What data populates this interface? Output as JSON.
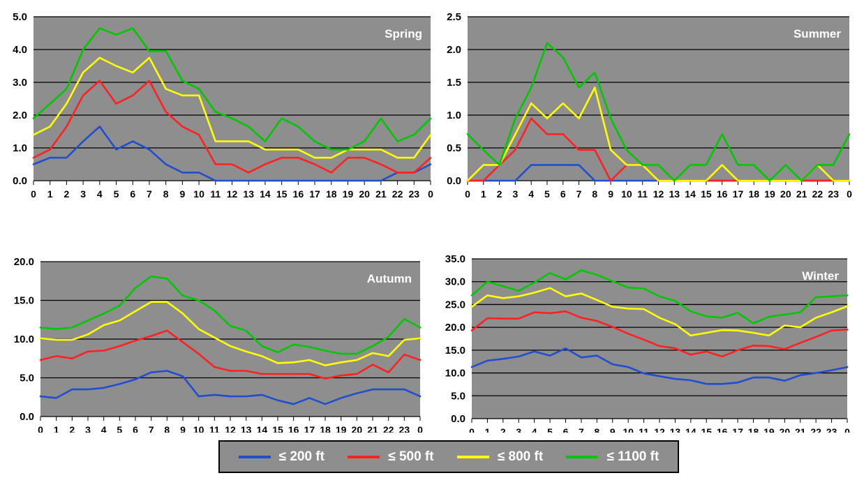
{
  "colors": {
    "plot_bg": "#8e8e8e",
    "series": [
      "#1f4fd0",
      "#ff2020",
      "#ffff00",
      "#00c800"
    ]
  },
  "legend": {
    "items": [
      {
        "label": "≤ 200 ft",
        "color": "#1f4fd0"
      },
      {
        "label": "≤ 500 ft",
        "color": "#ff2020"
      },
      {
        "label": "≤ 800 ft",
        "color": "#ffff00"
      },
      {
        "label": "≤ 1100 ft",
        "color": "#00c800"
      }
    ]
  },
  "chart_data": [
    {
      "type": "line",
      "title": "Spring",
      "x": [
        "0",
        "1",
        "2",
        "3",
        "4",
        "5",
        "6",
        "7",
        "8",
        "9",
        "10",
        "11",
        "12",
        "13",
        "14",
        "15",
        "16",
        "17",
        "18",
        "19",
        "20",
        "21",
        "22",
        "23",
        "0"
      ],
      "ylim": [
        0,
        5
      ],
      "yticks": [
        "0.0",
        "1.0",
        "2.0",
        "3.0",
        "4.0",
        "5.0"
      ],
      "grid": true,
      "series": [
        {
          "name": "≤ 200 ft",
          "values": [
            0.5,
            0.7,
            0.7,
            1.2,
            1.65,
            0.95,
            1.2,
            0.95,
            0.5,
            0.25,
            0.25,
            0,
            0,
            0,
            0,
            0,
            0,
            0,
            0,
            0,
            0,
            0,
            0.25,
            0.25,
            0.5
          ]
        },
        {
          "name": "≤ 500 ft",
          "values": [
            0.7,
            0.95,
            1.65,
            2.6,
            3.05,
            2.35,
            2.6,
            3.05,
            2.1,
            1.65,
            1.4,
            0.5,
            0.5,
            0.25,
            0.5,
            0.7,
            0.7,
            0.5,
            0.25,
            0.7,
            0.7,
            0.5,
            0.25,
            0.25,
            0.7
          ]
        },
        {
          "name": "≤ 800 ft",
          "values": [
            1.4,
            1.65,
            2.35,
            3.3,
            3.75,
            3.5,
            3.3,
            3.75,
            2.8,
            2.6,
            2.6,
            1.2,
            1.2,
            1.2,
            0.95,
            0.95,
            0.95,
            0.7,
            0.7,
            0.95,
            0.95,
            0.95,
            0.7,
            0.7,
            1.4
          ]
        },
        {
          "name": "≤ 1100 ft",
          "values": [
            1.9,
            2.35,
            2.8,
            4.0,
            4.65,
            4.45,
            4.65,
            3.95,
            3.95,
            3.05,
            2.8,
            2.1,
            1.9,
            1.65,
            1.2,
            1.9,
            1.65,
            1.2,
            0.95,
            0.95,
            1.2,
            1.9,
            1.2,
            1.4,
            1.9
          ]
        }
      ]
    },
    {
      "type": "line",
      "title": "Summer",
      "x": [
        "0",
        "1",
        "2",
        "3",
        "4",
        "5",
        "6",
        "7",
        "8",
        "9",
        "10",
        "11",
        "12",
        "13",
        "14",
        "15",
        "16",
        "17",
        "18",
        "19",
        "20",
        "21",
        "22",
        "23",
        "0"
      ],
      "ylim": [
        0,
        2.5
      ],
      "yticks": [
        "0.0",
        "0.5",
        "1.0",
        "1.5",
        "2.0",
        "2.5"
      ],
      "grid": true,
      "series": [
        {
          "name": "≤ 200 ft",
          "values": [
            0,
            0,
            0,
            0,
            0.24,
            0.24,
            0.24,
            0.24,
            0,
            0,
            0,
            0,
            0,
            0,
            0,
            0,
            0,
            0,
            0,
            0,
            0,
            0,
            0,
            0,
            0
          ]
        },
        {
          "name": "≤ 500 ft",
          "values": [
            0,
            0,
            0.24,
            0.47,
            0.95,
            0.71,
            0.71,
            0.47,
            0.47,
            0,
            0.24,
            0.24,
            0,
            0,
            0,
            0,
            0,
            0,
            0,
            0,
            0,
            0,
            0,
            0,
            0
          ]
        },
        {
          "name": "≤ 800 ft",
          "values": [
            0,
            0.24,
            0.24,
            0.71,
            1.18,
            0.95,
            1.18,
            0.95,
            1.42,
            0.47,
            0.24,
            0.24,
            0,
            0,
            0,
            0,
            0.24,
            0,
            0,
            0,
            0,
            0,
            0.24,
            0,
            0
          ]
        },
        {
          "name": "≤ 1100 ft",
          "values": [
            0.71,
            0.47,
            0.24,
            0.95,
            1.42,
            2.1,
            1.88,
            1.42,
            1.65,
            0.95,
            0.47,
            0.24,
            0.24,
            0,
            0.24,
            0.24,
            0.71,
            0.24,
            0.24,
            0,
            0.24,
            0,
            0.24,
            0.24,
            0.71
          ]
        }
      ]
    },
    {
      "type": "line",
      "title": "Autumn",
      "x": [
        "0",
        "1",
        "2",
        "3",
        "4",
        "5",
        "6",
        "7",
        "8",
        "9",
        "10",
        "11",
        "12",
        "13",
        "14",
        "15",
        "16",
        "17",
        "18",
        "19",
        "20",
        "21",
        "22",
        "23",
        "0"
      ],
      "ylim": [
        0,
        20
      ],
      "yticks": [
        "0.0",
        "5.0",
        "10.0",
        "15.0",
        "20.0"
      ],
      "grid": true,
      "series": [
        {
          "name": "≤ 200 ft",
          "values": [
            2.6,
            2.4,
            3.5,
            3.5,
            3.7,
            4.2,
            4.8,
            5.7,
            5.9,
            5.2,
            2.6,
            2.8,
            2.6,
            2.6,
            2.8,
            2.1,
            1.6,
            2.4,
            1.6,
            2.4,
            3.0,
            3.5,
            3.5,
            3.5,
            2.6
          ]
        },
        {
          "name": "≤ 500 ft",
          "values": [
            7.3,
            7.8,
            7.5,
            8.4,
            8.5,
            9.1,
            9.8,
            10.4,
            11.1,
            9.6,
            8.1,
            6.4,
            5.9,
            5.9,
            5.5,
            5.5,
            5.5,
            5.5,
            4.9,
            5.3,
            5.5,
            6.7,
            5.7,
            8.0,
            7.3
          ]
        },
        {
          "name": "≤ 800 ft",
          "values": [
            10.1,
            9.9,
            9.9,
            10.6,
            11.8,
            12.4,
            13.6,
            14.8,
            14.8,
            13.3,
            11.3,
            10.2,
            9.1,
            8.4,
            7.8,
            6.9,
            7.0,
            7.3,
            6.6,
            7.0,
            7.3,
            8.2,
            7.8,
            9.9,
            10.1
          ]
        },
        {
          "name": "≤ 1100 ft",
          "values": [
            11.5,
            11.3,
            11.5,
            12.4,
            13.3,
            14.3,
            16.6,
            18.1,
            17.8,
            15.6,
            15.0,
            13.7,
            11.7,
            11.1,
            9.1,
            8.3,
            9.3,
            9.0,
            8.5,
            8.1,
            8.1,
            9.1,
            10.3,
            12.6,
            11.5
          ]
        }
      ]
    },
    {
      "type": "line",
      "title": "Winter",
      "x": [
        "0",
        "1",
        "2",
        "3",
        "4",
        "5",
        "6",
        "7",
        "8",
        "9",
        "10",
        "11",
        "12",
        "13",
        "14",
        "15",
        "16",
        "17",
        "18",
        "19",
        "20",
        "21",
        "22",
        "23",
        "0"
      ],
      "ylim": [
        0,
        35
      ],
      "yticks": [
        "0.0",
        "5.0",
        "10.0",
        "15.0",
        "20.0",
        "25.0",
        "30.0",
        "35.0"
      ],
      "grid": true,
      "series": [
        {
          "name": "≤ 200 ft",
          "values": [
            11.3,
            12.7,
            13.1,
            13.6,
            14.7,
            13.8,
            15.4,
            13.4,
            13.8,
            11.9,
            11.3,
            9.9,
            9.3,
            8.7,
            8.4,
            7.6,
            7.6,
            7.9,
            9.0,
            9.0,
            8.3,
            9.5,
            10.0,
            10.6,
            11.3
          ]
        },
        {
          "name": "≤ 500 ft",
          "values": [
            19.3,
            22.0,
            21.9,
            21.9,
            23.3,
            23.1,
            23.5,
            22.1,
            21.4,
            20.1,
            18.6,
            17.3,
            15.9,
            15.4,
            14.0,
            14.7,
            13.6,
            15.0,
            16.0,
            15.9,
            15.2,
            16.6,
            17.9,
            19.3,
            19.5
          ]
        },
        {
          "name": "≤ 800 ft",
          "values": [
            24.5,
            27.0,
            26.4,
            26.8,
            27.6,
            28.6,
            26.8,
            27.4,
            26.0,
            24.5,
            24.1,
            24.0,
            22.1,
            20.7,
            18.2,
            18.8,
            19.4,
            19.3,
            18.8,
            18.2,
            20.4,
            20.0,
            22.1,
            23.3,
            24.6
          ]
        },
        {
          "name": "≤ 1100 ft",
          "values": [
            27.0,
            30.0,
            29.0,
            28.0,
            29.8,
            31.9,
            30.5,
            32.5,
            31.5,
            30.1,
            28.7,
            28.5,
            26.8,
            25.8,
            23.5,
            22.4,
            22.1,
            23.2,
            20.9,
            22.3,
            22.8,
            23.3,
            26.6,
            26.8,
            27.0
          ]
        }
      ]
    }
  ]
}
